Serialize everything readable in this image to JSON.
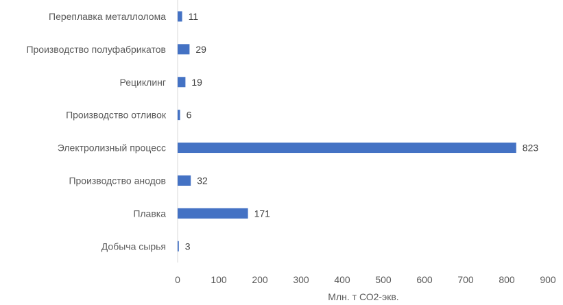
{
  "chart_data": {
    "type": "bar",
    "orientation": "horizontal",
    "categories": [
      "Переплавка металлолома",
      "Производство полуфабрикатов",
      "Рециклинг",
      "Производство отливок",
      "Электролизный процесс",
      "Производство анодов",
      "Плавка",
      "Добыча сырья"
    ],
    "values": [
      11,
      29,
      19,
      6,
      823,
      32,
      171,
      3
    ],
    "xlabel": "Млн. т СО2-экв.",
    "xlim": [
      0,
      900
    ],
    "xticks": [
      "0",
      "100",
      "200",
      "300",
      "400",
      "500",
      "600",
      "700",
      "800",
      "900"
    ],
    "grid": false,
    "bar_color": "#4472c4"
  }
}
